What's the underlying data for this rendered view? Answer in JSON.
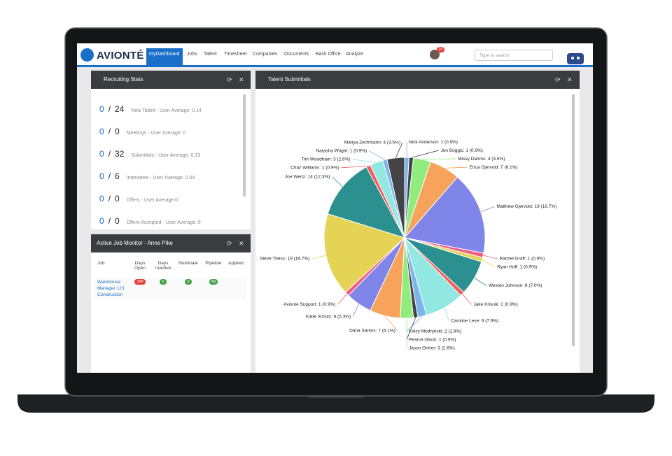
{
  "nav": {
    "brand": "AVIONTÉ",
    "items": [
      "myDashboard",
      "Jobs",
      "Talent",
      "Timesheet",
      "Companies",
      "Documents",
      "Back Office",
      "Analyze"
    ],
    "notification_count": 20,
    "search_placeholder": "Type to search"
  },
  "recruiting_stats": {
    "title": "Recruiting Stats",
    "rows": [
      {
        "done": 0,
        "total": 24,
        "label": "New Talent - User Average: 0.14"
      },
      {
        "done": 0,
        "total": 0,
        "label": "Meetings - User Average: 0"
      },
      {
        "done": 0,
        "total": 32,
        "label": "Submittals - User Average: 0.19"
      },
      {
        "done": 0,
        "total": 6,
        "label": "Interviews - User Average: 0.04"
      },
      {
        "done": 0,
        "total": 0,
        "label": "Offers - User Average 0"
      },
      {
        "done": 0,
        "total": 0,
        "label": "Offers Accepted - User Average: 0"
      }
    ]
  },
  "job_monitor": {
    "title": "Active Job Monitor - Anne Pike",
    "headers": [
      "Job",
      "Days Open",
      "Days Inactive",
      "Nominate",
      "Pipeline",
      "Applied"
    ],
    "rows": [
      {
        "job": "Warehouse Manager 123 Construction",
        "days_open": 384,
        "days_inactive": 0,
        "nominate": 0,
        "pipeline": 49
      }
    ]
  },
  "chart_data": {
    "type": "pie",
    "title": "Talent Submittals",
    "values": [
      1,
      1,
      4,
      7,
      19,
      1,
      1,
      8,
      1,
      9,
      2,
      1,
      3,
      7,
      6,
      1,
      19,
      14,
      1,
      3,
      1,
      4
    ],
    "value_labels": [
      "Nick Anderson: 1 (0.9%)",
      "Jen Boggic: 1 (0.9%)",
      "Missy Dahms: 4 (3.5%)",
      "Erica Gjervold: 7 (6.1%)",
      "Matthew Gjervold: 19 (16.7%)",
      "Rachel Graft: 1 (0.9%)",
      "Ryan Hoff: 1 (0.9%)",
      "Weston Johnson: 8 (7.0%)",
      "Jake Krisnik: 1 (0.9%)",
      "Caroline Lese: 9 (7.9%)",
      "Kelcy Modrynski: 2 (1.8%)",
      "Pearce Olson: 1 (0.9%)",
      "Jason Ortner: 3 (2.6%)",
      "Dana Santos: 7 (6.1%)",
      "Katie Schulz: 6 (5.3%)",
      "Avionte Support: 1 (0.9%)",
      "Steve Thess: 19 (16.7%)",
      "Joe Wertz: 14 (12.3%)",
      "Chaz Williams: 1 (0.9%)",
      "Tim Woodham: 3 (2.6%)",
      "Natasha Wright: 1 (0.9%)",
      "Mariya Zechmann: 4 (3.5%)"
    ],
    "colors": [
      "#7cb5ec",
      "#434348",
      "#90ed7d",
      "#f7a35c",
      "#8085e9",
      "#f15c80",
      "#e4d354",
      "#2b908f",
      "#f45b5b",
      "#91e8e1",
      "#7cb5ec",
      "#434348",
      "#90ed7d",
      "#f7a35c",
      "#8085e9",
      "#f15c80",
      "#e4d354",
      "#2b908f",
      "#f45b5b",
      "#91e8e1",
      "#7cb5ec",
      "#434348"
    ]
  }
}
